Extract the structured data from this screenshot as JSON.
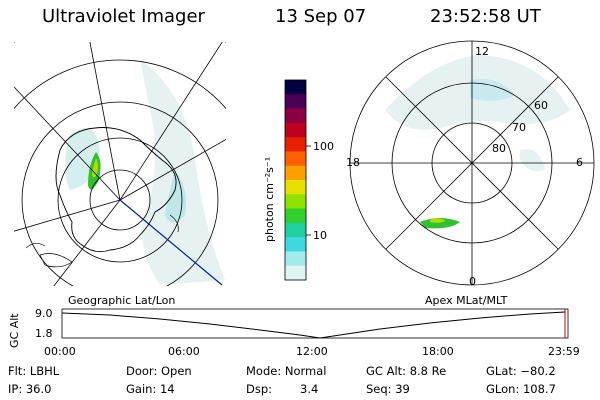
{
  "header": {
    "title": "Ultraviolet Imager",
    "date": "13 Sep 07",
    "time": "23:52:58 UT"
  },
  "geo_map": {
    "label": "Geographic Lat/Lon"
  },
  "apex_map": {
    "label": "Apex MLat/MLT",
    "mlt_labels": {
      "top": "12",
      "left": "18",
      "right": "6",
      "bottom": "0"
    },
    "mlat_labels": [
      "60",
      "70",
      "80"
    ]
  },
  "colorbar": {
    "label": "photon cm⁻²s⁻¹",
    "ticks": [
      "100",
      "10"
    ],
    "colors": [
      "#000040",
      "#4b0055",
      "#8b0045",
      "#c00020",
      "#e82000",
      "#ff6000",
      "#ffa000",
      "#e8e000",
      "#90e000",
      "#30d030",
      "#20d0a0",
      "#40d8e0",
      "#a0ecec",
      "#e0f4f4"
    ]
  },
  "altitude_plot": {
    "ylabel": "GC Alt",
    "yticks": [
      "9.0",
      "1.8"
    ],
    "xticks": [
      "00:00",
      "06:00",
      "12:00",
      "18:00",
      "23:59"
    ]
  },
  "info": {
    "row1": {
      "filter": "Flt: LBHL",
      "door": "Door: Open",
      "mode": "Mode: Normal",
      "gc_alt": "GC Alt: 8.8 Re",
      "glat": "GLat: −80.2"
    },
    "row2": {
      "ip": "IP: 36.0",
      "gain": "Gain: 14",
      "dsp_label": "Dsp:",
      "dsp_value": "3.4",
      "seq": "Seq: 39",
      "glon": "GLon: 108.7"
    }
  }
}
